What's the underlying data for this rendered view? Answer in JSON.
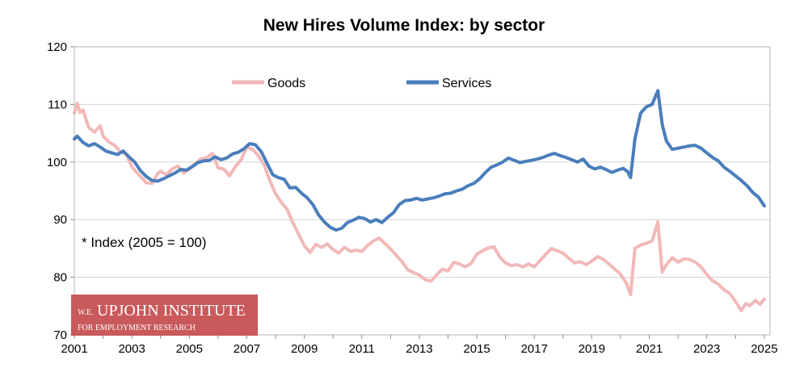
{
  "chart_data": {
    "type": "line",
    "title": "New Hires Volume Index: by sector",
    "xlabel": "",
    "ylabel": "",
    "xlim": [
      2001,
      2025.2
    ],
    "ylim": [
      70,
      120
    ],
    "yticks": [
      70,
      80,
      90,
      100,
      110,
      120
    ],
    "xticks": [
      2001,
      2003,
      2005,
      2007,
      2009,
      2011,
      2013,
      2015,
      2017,
      2019,
      2021,
      2023,
      2025
    ],
    "grid": true,
    "legend_position": "top-center",
    "annotation": "* Index (2005 = 100)",
    "series": [
      {
        "name": "Goods",
        "color": "#f2b8b8",
        "points": [
          [
            2001.0,
            108.5
          ],
          [
            2001.1,
            110.2
          ],
          [
            2001.2,
            108.6
          ],
          [
            2001.3,
            109.0
          ],
          [
            2001.5,
            106.0
          ],
          [
            2001.7,
            105.2
          ],
          [
            2001.9,
            106.3
          ],
          [
            2002.0,
            104.5
          ],
          [
            2002.2,
            103.5
          ],
          [
            2002.4,
            102.9
          ],
          [
            2002.6,
            101.8
          ],
          [
            2002.8,
            101.4
          ],
          [
            2003.0,
            99.2
          ],
          [
            2003.2,
            98.0
          ],
          [
            2003.4,
            97.0
          ],
          [
            2003.5,
            96.4
          ],
          [
            2003.7,
            96.3
          ],
          [
            2003.9,
            98.0
          ],
          [
            2004.0,
            98.4
          ],
          [
            2004.2,
            97.8
          ],
          [
            2004.4,
            98.8
          ],
          [
            2004.6,
            99.3
          ],
          [
            2004.8,
            98.1
          ],
          [
            2005.0,
            98.8
          ],
          [
            2005.2,
            99.7
          ],
          [
            2005.4,
            100.5
          ],
          [
            2005.6,
            100.8
          ],
          [
            2005.8,
            101.5
          ],
          [
            2006.0,
            99.0
          ],
          [
            2006.2,
            98.8
          ],
          [
            2006.4,
            97.6
          ],
          [
            2006.6,
            99.2
          ],
          [
            2006.8,
            100.4
          ],
          [
            2007.0,
            102.6
          ],
          [
            2007.2,
            102.2
          ],
          [
            2007.4,
            101.1
          ],
          [
            2007.6,
            99.5
          ],
          [
            2007.8,
            96.8
          ],
          [
            2008.0,
            94.5
          ],
          [
            2008.2,
            93.0
          ],
          [
            2008.4,
            91.8
          ],
          [
            2008.6,
            89.5
          ],
          [
            2008.8,
            87.5
          ],
          [
            2009.0,
            85.5
          ],
          [
            2009.2,
            84.3
          ],
          [
            2009.4,
            85.7
          ],
          [
            2009.6,
            85.2
          ],
          [
            2009.8,
            85.8
          ],
          [
            2010.0,
            84.8
          ],
          [
            2010.2,
            84.2
          ],
          [
            2010.4,
            85.2
          ],
          [
            2010.6,
            84.5
          ],
          [
            2010.8,
            84.7
          ],
          [
            2011.0,
            84.5
          ],
          [
            2011.2,
            85.5
          ],
          [
            2011.4,
            86.3
          ],
          [
            2011.6,
            86.8
          ],
          [
            2011.8,
            85.9
          ],
          [
            2012.0,
            84.9
          ],
          [
            2012.2,
            83.8
          ],
          [
            2012.4,
            82.7
          ],
          [
            2012.6,
            81.3
          ],
          [
            2012.8,
            80.8
          ],
          [
            2013.0,
            80.4
          ],
          [
            2013.2,
            79.6
          ],
          [
            2013.4,
            79.3
          ],
          [
            2013.6,
            80.4
          ],
          [
            2013.8,
            81.4
          ],
          [
            2014.0,
            81.1
          ],
          [
            2014.2,
            82.6
          ],
          [
            2014.4,
            82.3
          ],
          [
            2014.6,
            81.8
          ],
          [
            2014.8,
            82.4
          ],
          [
            2015.0,
            84.0
          ],
          [
            2015.2,
            84.6
          ],
          [
            2015.4,
            85.1
          ],
          [
            2015.6,
            85.3
          ],
          [
            2015.8,
            83.5
          ],
          [
            2016.0,
            82.5
          ],
          [
            2016.2,
            82.0
          ],
          [
            2016.4,
            82.2
          ],
          [
            2016.6,
            81.8
          ],
          [
            2016.8,
            82.3
          ],
          [
            2017.0,
            81.8
          ],
          [
            2017.2,
            82.9
          ],
          [
            2017.4,
            84.0
          ],
          [
            2017.6,
            85.0
          ],
          [
            2017.8,
            84.6
          ],
          [
            2018.0,
            84.2
          ],
          [
            2018.2,
            83.3
          ],
          [
            2018.4,
            82.5
          ],
          [
            2018.6,
            82.7
          ],
          [
            2018.8,
            82.2
          ],
          [
            2019.0,
            82.8
          ],
          [
            2019.2,
            83.6
          ],
          [
            2019.4,
            83.1
          ],
          [
            2019.6,
            82.3
          ],
          [
            2019.8,
            81.4
          ],
          [
            2020.0,
            80.5
          ],
          [
            2020.2,
            79.0
          ],
          [
            2020.35,
            77.0
          ],
          [
            2020.5,
            85.0
          ],
          [
            2020.7,
            85.6
          ],
          [
            2020.9,
            85.9
          ],
          [
            2021.1,
            86.3
          ],
          [
            2021.3,
            89.6
          ],
          [
            2021.45,
            80.9
          ],
          [
            2021.6,
            82.2
          ],
          [
            2021.8,
            83.4
          ],
          [
            2022.0,
            82.6
          ],
          [
            2022.2,
            83.2
          ],
          [
            2022.4,
            83.1
          ],
          [
            2022.6,
            82.6
          ],
          [
            2022.8,
            81.8
          ],
          [
            2023.0,
            80.5
          ],
          [
            2023.2,
            79.4
          ],
          [
            2023.4,
            78.8
          ],
          [
            2023.6,
            77.8
          ],
          [
            2023.8,
            77.2
          ],
          [
            2024.0,
            75.8
          ],
          [
            2024.2,
            74.2
          ],
          [
            2024.35,
            75.4
          ],
          [
            2024.5,
            75.1
          ],
          [
            2024.7,
            76.0
          ],
          [
            2024.85,
            75.3
          ],
          [
            2025.0,
            76.2
          ]
        ]
      },
      {
        "name": "Services",
        "color": "#4a7ebb",
        "points": [
          [
            2001.0,
            104.0
          ],
          [
            2001.1,
            104.5
          ],
          [
            2001.3,
            103.4
          ],
          [
            2001.5,
            102.8
          ],
          [
            2001.7,
            103.2
          ],
          [
            2001.9,
            102.6
          ],
          [
            2002.1,
            101.9
          ],
          [
            2002.3,
            101.6
          ],
          [
            2002.5,
            101.3
          ],
          [
            2002.7,
            101.9
          ],
          [
            2002.9,
            100.9
          ],
          [
            2003.1,
            100.0
          ],
          [
            2003.3,
            98.5
          ],
          [
            2003.5,
            97.5
          ],
          [
            2003.7,
            96.8
          ],
          [
            2003.9,
            96.7
          ],
          [
            2004.1,
            97.1
          ],
          [
            2004.3,
            97.6
          ],
          [
            2004.5,
            98.1
          ],
          [
            2004.7,
            98.7
          ],
          [
            2004.9,
            98.6
          ],
          [
            2005.1,
            99.2
          ],
          [
            2005.3,
            99.9
          ],
          [
            2005.5,
            100.2
          ],
          [
            2005.7,
            100.3
          ],
          [
            2005.9,
            100.9
          ],
          [
            2006.1,
            100.4
          ],
          [
            2006.3,
            100.7
          ],
          [
            2006.5,
            101.4
          ],
          [
            2006.7,
            101.7
          ],
          [
            2006.9,
            102.3
          ],
          [
            2007.1,
            103.2
          ],
          [
            2007.3,
            103.0
          ],
          [
            2007.5,
            101.8
          ],
          [
            2007.7,
            99.8
          ],
          [
            2007.9,
            97.8
          ],
          [
            2008.1,
            97.3
          ],
          [
            2008.3,
            97.0
          ],
          [
            2008.5,
            95.5
          ],
          [
            2008.7,
            95.6
          ],
          [
            2008.9,
            94.6
          ],
          [
            2009.1,
            93.8
          ],
          [
            2009.3,
            92.6
          ],
          [
            2009.5,
            90.8
          ],
          [
            2009.7,
            89.6
          ],
          [
            2009.9,
            88.7
          ],
          [
            2010.1,
            88.2
          ],
          [
            2010.3,
            88.5
          ],
          [
            2010.5,
            89.5
          ],
          [
            2010.7,
            89.9
          ],
          [
            2010.9,
            90.4
          ],
          [
            2011.1,
            90.2
          ],
          [
            2011.3,
            89.6
          ],
          [
            2011.5,
            90.0
          ],
          [
            2011.7,
            89.5
          ],
          [
            2011.9,
            90.4
          ],
          [
            2012.1,
            91.2
          ],
          [
            2012.3,
            92.6
          ],
          [
            2012.5,
            93.3
          ],
          [
            2012.7,
            93.4
          ],
          [
            2012.9,
            93.7
          ],
          [
            2013.1,
            93.4
          ],
          [
            2013.3,
            93.6
          ],
          [
            2013.5,
            93.8
          ],
          [
            2013.7,
            94.1
          ],
          [
            2013.9,
            94.5
          ],
          [
            2014.1,
            94.6
          ],
          [
            2014.3,
            95.0
          ],
          [
            2014.5,
            95.3
          ],
          [
            2014.7,
            95.9
          ],
          [
            2014.9,
            96.3
          ],
          [
            2015.1,
            97.1
          ],
          [
            2015.3,
            98.2
          ],
          [
            2015.5,
            99.1
          ],
          [
            2015.7,
            99.5
          ],
          [
            2015.9,
            100.0
          ],
          [
            2016.1,
            100.7
          ],
          [
            2016.3,
            100.3
          ],
          [
            2016.5,
            99.9
          ],
          [
            2016.7,
            100.1
          ],
          [
            2016.9,
            100.3
          ],
          [
            2017.1,
            100.5
          ],
          [
            2017.3,
            100.8
          ],
          [
            2017.5,
            101.2
          ],
          [
            2017.7,
            101.5
          ],
          [
            2017.9,
            101.1
          ],
          [
            2018.1,
            100.8
          ],
          [
            2018.3,
            100.4
          ],
          [
            2018.5,
            100.0
          ],
          [
            2018.7,
            100.5
          ],
          [
            2018.9,
            99.3
          ],
          [
            2019.1,
            98.8
          ],
          [
            2019.3,
            99.1
          ],
          [
            2019.5,
            98.7
          ],
          [
            2019.7,
            98.2
          ],
          [
            2019.9,
            98.6
          ],
          [
            2020.1,
            98.9
          ],
          [
            2020.25,
            98.3
          ],
          [
            2020.35,
            97.3
          ],
          [
            2020.5,
            104.0
          ],
          [
            2020.7,
            108.5
          ],
          [
            2020.9,
            109.6
          ],
          [
            2021.1,
            110.0
          ],
          [
            2021.3,
            112.4
          ],
          [
            2021.45,
            106.5
          ],
          [
            2021.6,
            103.6
          ],
          [
            2021.8,
            102.2
          ],
          [
            2022.0,
            102.4
          ],
          [
            2022.2,
            102.6
          ],
          [
            2022.4,
            102.8
          ],
          [
            2022.6,
            102.9
          ],
          [
            2022.8,
            102.4
          ],
          [
            2023.0,
            101.6
          ],
          [
            2023.2,
            100.8
          ],
          [
            2023.4,
            100.2
          ],
          [
            2023.6,
            99.1
          ],
          [
            2023.8,
            98.4
          ],
          [
            2024.0,
            97.6
          ],
          [
            2024.2,
            96.8
          ],
          [
            2024.4,
            95.9
          ],
          [
            2024.6,
            94.7
          ],
          [
            2024.8,
            93.9
          ],
          [
            2025.0,
            92.4
          ]
        ]
      }
    ]
  },
  "logo": {
    "line1_small": "W.E.",
    "line1_main": "UPJOHN INSTITUTE",
    "line2": "FOR EMPLOYMENT RESEARCH",
    "background_color": "#c9595a"
  }
}
